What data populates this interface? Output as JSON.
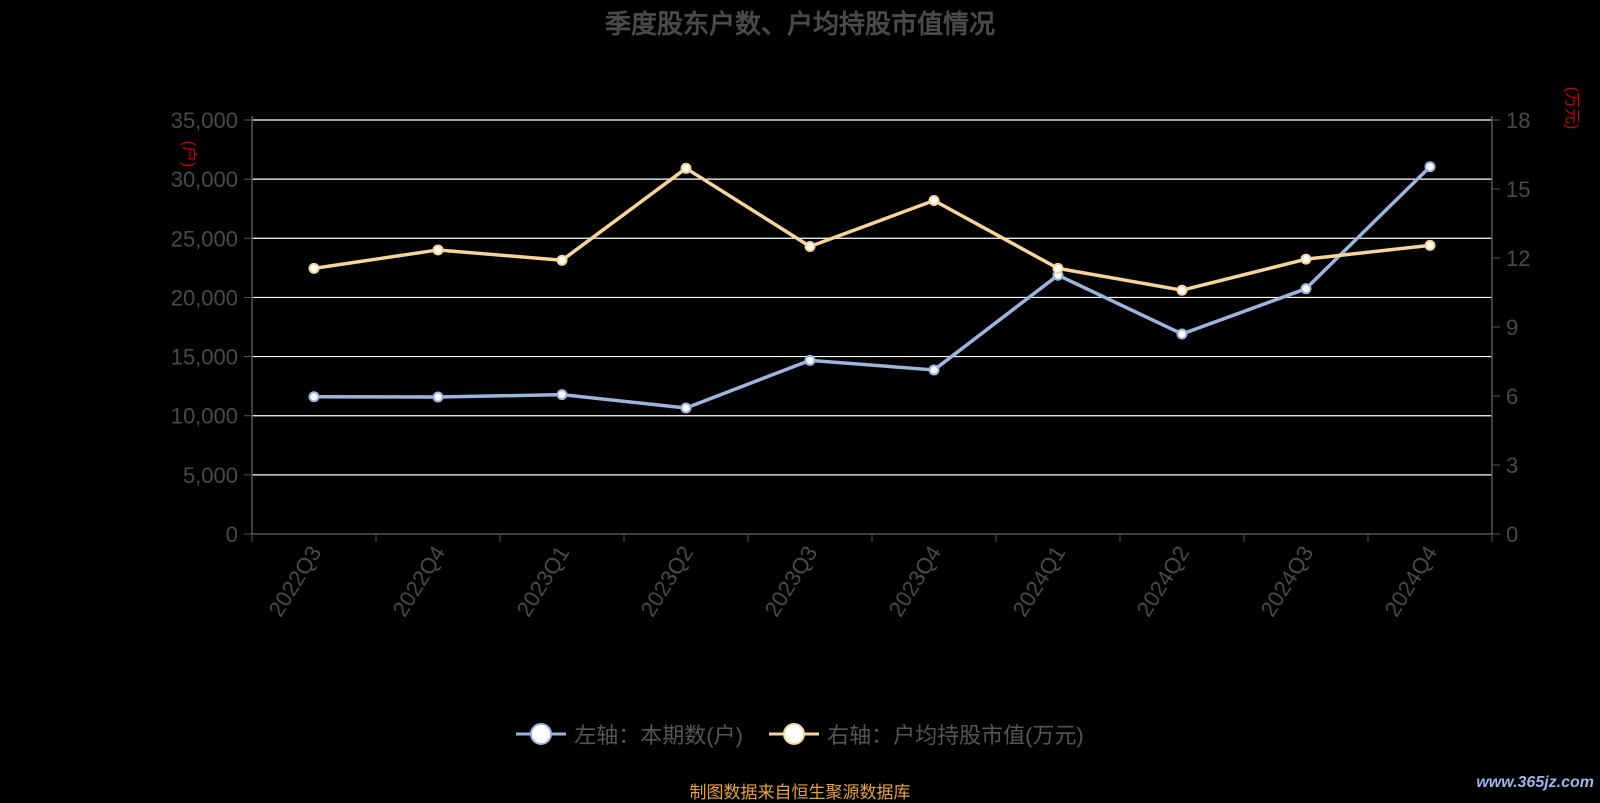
{
  "title": "季度股东户数、户均持股市值情况",
  "left_unit": "(户)",
  "right_unit": "(万元)",
  "legend": {
    "left": "左轴：本期数(户)",
    "right": "右轴：户均持股市值(万元)"
  },
  "source": "制图数据来自恒生聚源数据库",
  "watermark": "www.365jz.com",
  "colors": {
    "left_series": "#9bb5de",
    "right_series": "#f6d49a",
    "grid": "#ffffff",
    "axis": "#555555",
    "unit": "#cc0000"
  },
  "chart_data": {
    "type": "line",
    "title": "季度股东户数、户均持股市值情况",
    "categories": [
      "2022Q3",
      "2022Q4",
      "2023Q1",
      "2023Q2",
      "2023Q3",
      "2023Q4",
      "2024Q1",
      "2024Q2",
      "2024Q3",
      "2024Q4"
    ],
    "left_axis": {
      "ylim": [
        0,
        35000
      ],
      "ticks": [
        "0",
        "5,000",
        "10,000",
        "15,000",
        "20,000",
        "25,000",
        "30,000",
        "35,000"
      ],
      "tick_values": [
        0,
        5000,
        10000,
        15000,
        20000,
        25000,
        30000,
        35000
      ]
    },
    "right_axis": {
      "ylim": [
        0,
        18
      ],
      "ticks": [
        "0",
        "3",
        "6",
        "9",
        "12",
        "15",
        "18"
      ],
      "tick_values": [
        0,
        3,
        6,
        9,
        12,
        15,
        18
      ]
    },
    "series": [
      {
        "name": "左轴：本期数(户)",
        "axis": "left",
        "values": [
          11600,
          11580,
          11780,
          10650,
          14680,
          13870,
          21880,
          16910,
          20740,
          31050
        ]
      },
      {
        "name": "右轴：户均持股市值(万元)",
        "axis": "right",
        "values": [
          11.55,
          12.35,
          11.9,
          15.9,
          12.5,
          14.5,
          11.55,
          10.6,
          11.95,
          12.55
        ]
      }
    ],
    "grid": true,
    "legend_position": "bottom"
  }
}
